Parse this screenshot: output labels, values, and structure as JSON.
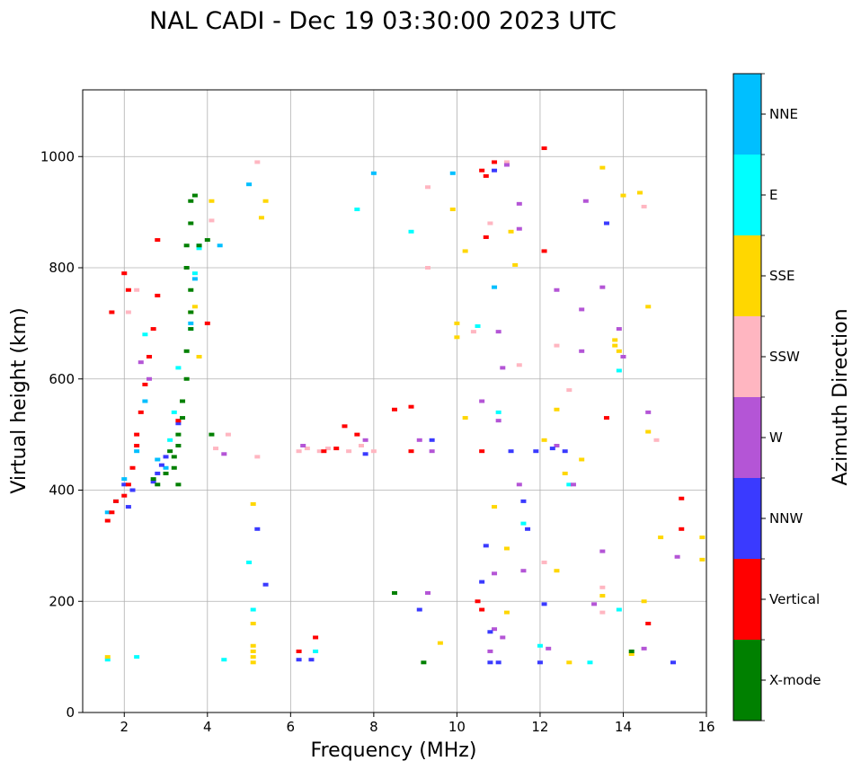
{
  "chart_data": {
    "type": "scatter",
    "title": "NAL CADI - Dec 19 03:30:00 2023 UTC",
    "xlabel": "Frequency (MHz)",
    "ylabel": "Virtual height (km)",
    "xlim": [
      1,
      16
    ],
    "ylim": [
      0,
      1120
    ],
    "xticks": [
      2,
      4,
      6,
      8,
      10,
      12,
      14,
      16
    ],
    "yticks": [
      0,
      200,
      400,
      600,
      800,
      1000
    ],
    "grid": true,
    "colorbar": {
      "label": "Azimuth Direction",
      "categories": [
        {
          "name": "X-mode",
          "color": "#008000"
        },
        {
          "name": "Vertical",
          "color": "#ff0000"
        },
        {
          "name": "NNW",
          "color": "#3a3aff"
        },
        {
          "name": "W",
          "color": "#b455d6"
        },
        {
          "name": "SSW",
          "color": "#ffb6c1"
        },
        {
          "name": "SSE",
          "color": "#ffd700"
        },
        {
          "name": "E",
          "color": "#00ffff"
        },
        {
          "name": "NNE",
          "color": "#00bfff"
        }
      ]
    },
    "series": [
      {
        "name": "NNE",
        "points": [
          [
            1.6,
            360
          ],
          [
            1.8,
            380
          ],
          [
            2.0,
            420
          ],
          [
            2.3,
            470
          ],
          [
            2.5,
            560
          ],
          [
            2.6,
            640
          ],
          [
            2.8,
            455
          ],
          [
            3.0,
            440
          ],
          [
            3.6,
            700
          ],
          [
            3.7,
            780
          ],
          [
            3.8,
            840
          ],
          [
            4.3,
            840
          ],
          [
            5.0,
            950
          ],
          [
            8.0,
            970
          ],
          [
            9.9,
            970
          ],
          [
            10.9,
            765
          ]
        ]
      },
      {
        "name": "E",
        "points": [
          [
            1.6,
            95
          ],
          [
            2.3,
            100
          ],
          [
            2.5,
            680
          ],
          [
            3.1,
            490
          ],
          [
            3.2,
            540
          ],
          [
            3.3,
            620
          ],
          [
            3.6,
            690
          ],
          [
            3.7,
            790
          ],
          [
            3.8,
            835
          ],
          [
            4.4,
            95
          ],
          [
            5.1,
            185
          ],
          [
            5.0,
            270
          ],
          [
            7.6,
            905
          ],
          [
            8.9,
            865
          ],
          [
            10.5,
            695
          ],
          [
            11.0,
            540
          ],
          [
            11.6,
            340
          ],
          [
            12.7,
            410
          ],
          [
            13.2,
            90
          ],
          [
            13.9,
            185
          ],
          [
            13.9,
            615
          ],
          [
            12.0,
            120
          ],
          [
            6.6,
            110
          ]
        ]
      },
      {
        "name": "SSE",
        "points": [
          [
            1.6,
            100
          ],
          [
            3.4,
            560
          ],
          [
            3.6,
            720
          ],
          [
            3.7,
            730
          ],
          [
            3.8,
            640
          ],
          [
            4.1,
            920
          ],
          [
            5.1,
            90
          ],
          [
            5.1,
            100
          ],
          [
            5.1,
            110
          ],
          [
            5.1,
            120
          ],
          [
            5.1,
            160
          ],
          [
            5.1,
            375
          ],
          [
            5.3,
            890
          ],
          [
            5.4,
            920
          ],
          [
            9.6,
            125
          ],
          [
            9.9,
            905
          ],
          [
            10.0,
            700
          ],
          [
            10.0,
            675
          ],
          [
            10.2,
            830
          ],
          [
            10.2,
            530
          ],
          [
            10.9,
            370
          ],
          [
            11.4,
            805
          ],
          [
            12.1,
            490
          ],
          [
            12.4,
            545
          ],
          [
            12.4,
            255
          ],
          [
            12.6,
            430
          ],
          [
            12.7,
            90
          ],
          [
            13.0,
            455
          ],
          [
            13.5,
            980
          ],
          [
            13.5,
            210
          ],
          [
            13.6,
            880
          ],
          [
            13.8,
            670
          ],
          [
            13.8,
            660
          ],
          [
            13.9,
            650
          ],
          [
            14.0,
            930
          ],
          [
            14.2,
            105
          ],
          [
            14.4,
            935
          ],
          [
            14.5,
            200
          ],
          [
            14.6,
            730
          ],
          [
            14.6,
            505
          ],
          [
            14.9,
            315
          ],
          [
            15.9,
            275
          ],
          [
            15.9,
            315
          ],
          [
            11.2,
            295
          ],
          [
            11.2,
            180
          ],
          [
            11.3,
            865
          ]
        ]
      },
      {
        "name": "SSW",
        "points": [
          [
            2.1,
            720
          ],
          [
            2.3,
            760
          ],
          [
            4.1,
            885
          ],
          [
            4.2,
            475
          ],
          [
            4.5,
            500
          ],
          [
            5.2,
            990
          ],
          [
            5.2,
            460
          ],
          [
            6.2,
            470
          ],
          [
            6.4,
            475
          ],
          [
            6.7,
            470
          ],
          [
            6.9,
            475
          ],
          [
            7.4,
            470
          ],
          [
            7.7,
            480
          ],
          [
            8.0,
            470
          ],
          [
            9.3,
            800
          ],
          [
            9.3,
            945
          ],
          [
            11.2,
            990
          ],
          [
            11.5,
            625
          ],
          [
            12.1,
            270
          ],
          [
            12.4,
            660
          ],
          [
            12.7,
            580
          ],
          [
            13.5,
            225
          ],
          [
            13.5,
            180
          ],
          [
            14.5,
            910
          ],
          [
            14.8,
            490
          ],
          [
            10.8,
            880
          ],
          [
            10.4,
            685
          ]
        ]
      },
      {
        "name": "W",
        "points": [
          [
            2.4,
            630
          ],
          [
            2.6,
            600
          ],
          [
            4.4,
            465
          ],
          [
            6.3,
            480
          ],
          [
            7.8,
            490
          ],
          [
            9.1,
            490
          ],
          [
            9.4,
            470
          ],
          [
            10.6,
            560
          ],
          [
            10.8,
            110
          ],
          [
            11.0,
            685
          ],
          [
            10.9,
            250
          ],
          [
            10.9,
            150
          ],
          [
            11.0,
            525
          ],
          [
            11.1,
            620
          ],
          [
            11.2,
            985
          ],
          [
            11.5,
            870
          ],
          [
            11.5,
            915
          ],
          [
            11.6,
            255
          ],
          [
            11.5,
            410
          ],
          [
            12.2,
            115
          ],
          [
            12.4,
            760
          ],
          [
            12.4,
            480
          ],
          [
            12.8,
            410
          ],
          [
            13.0,
            725
          ],
          [
            13.0,
            650
          ],
          [
            13.1,
            920
          ],
          [
            13.3,
            195
          ],
          [
            13.5,
            290
          ],
          [
            13.5,
            765
          ],
          [
            13.9,
            690
          ],
          [
            14.0,
            640
          ],
          [
            14.6,
            540
          ],
          [
            14.5,
            115
          ],
          [
            15.3,
            280
          ],
          [
            11.1,
            135
          ],
          [
            9.3,
            215
          ]
        ]
      },
      {
        "name": "NNW",
        "points": [
          [
            2.0,
            410
          ],
          [
            2.1,
            370
          ],
          [
            2.2,
            400
          ],
          [
            2.7,
            415
          ],
          [
            2.8,
            430
          ],
          [
            2.9,
            445
          ],
          [
            3.0,
            460
          ],
          [
            3.3,
            520
          ],
          [
            5.2,
            330
          ],
          [
            5.4,
            230
          ],
          [
            6.2,
            95
          ],
          [
            6.5,
            95
          ],
          [
            7.8,
            465
          ],
          [
            9.1,
            185
          ],
          [
            10.7,
            300
          ],
          [
            10.6,
            235
          ],
          [
            10.8,
            145
          ],
          [
            10.8,
            90
          ],
          [
            10.9,
            975
          ],
          [
            11.3,
            470
          ],
          [
            11.6,
            380
          ],
          [
            11.7,
            330
          ],
          [
            12.0,
            90
          ],
          [
            12.1,
            195
          ],
          [
            12.3,
            475
          ],
          [
            12.6,
            470
          ],
          [
            13.6,
            880
          ],
          [
            15.2,
            90
          ],
          [
            11.0,
            90
          ],
          [
            9.4,
            490
          ],
          [
            11.9,
            470
          ]
        ]
      },
      {
        "name": "Vertical",
        "points": [
          [
            1.6,
            345
          ],
          [
            1.7,
            360
          ],
          [
            1.8,
            380
          ],
          [
            2.0,
            390
          ],
          [
            2.1,
            410
          ],
          [
            2.2,
            440
          ],
          [
            2.3,
            480
          ],
          [
            2.3,
            500
          ],
          [
            2.4,
            540
          ],
          [
            2.5,
            590
          ],
          [
            2.6,
            640
          ],
          [
            2.7,
            690
          ],
          [
            2.8,
            750
          ],
          [
            2.0,
            790
          ],
          [
            2.1,
            760
          ],
          [
            1.7,
            720
          ],
          [
            2.8,
            850
          ],
          [
            6.2,
            110
          ],
          [
            6.6,
            135
          ],
          [
            6.8,
            470
          ],
          [
            7.1,
            475
          ],
          [
            7.3,
            515
          ],
          [
            7.6,
            500
          ],
          [
            8.5,
            545
          ],
          [
            8.9,
            470
          ],
          [
            8.9,
            550
          ],
          [
            10.5,
            200
          ],
          [
            10.6,
            470
          ],
          [
            10.6,
            975
          ],
          [
            10.7,
            965
          ],
          [
            10.7,
            855
          ],
          [
            10.9,
            990
          ],
          [
            10.6,
            185
          ],
          [
            12.1,
            830
          ],
          [
            12.1,
            1015
          ],
          [
            13.6,
            530
          ],
          [
            14.6,
            160
          ],
          [
            15.4,
            385
          ],
          [
            15.4,
            330
          ],
          [
            3.3,
            525
          ],
          [
            4.0,
            700
          ]
        ]
      },
      {
        "name": "X-mode",
        "points": [
          [
            2.7,
            420
          ],
          [
            2.8,
            410
          ],
          [
            3.0,
            430
          ],
          [
            3.1,
            470
          ],
          [
            3.2,
            460
          ],
          [
            3.3,
            480
          ],
          [
            3.3,
            500
          ],
          [
            3.4,
            530
          ],
          [
            3.4,
            560
          ],
          [
            3.5,
            600
          ],
          [
            3.5,
            650
          ],
          [
            3.6,
            690
          ],
          [
            3.6,
            720
          ],
          [
            3.6,
            760
          ],
          [
            3.5,
            800
          ],
          [
            3.5,
            840
          ],
          [
            3.6,
            880
          ],
          [
            3.8,
            840
          ],
          [
            3.3,
            410
          ],
          [
            3.2,
            440
          ],
          [
            4.1,
            500
          ],
          [
            4.0,
            850
          ],
          [
            3.7,
            930
          ],
          [
            3.6,
            920
          ],
          [
            8.5,
            215
          ],
          [
            9.2,
            90
          ],
          [
            14.2,
            110
          ]
        ]
      }
    ]
  }
}
